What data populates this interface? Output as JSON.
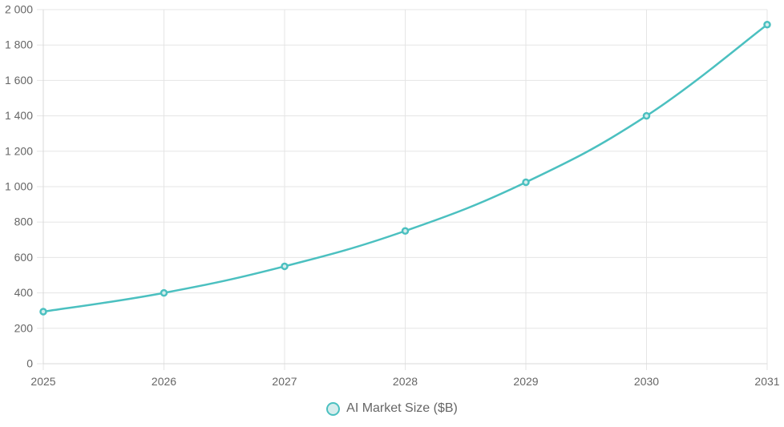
{
  "chart_data": {
    "type": "line",
    "x": [
      "2025",
      "2026",
      "2027",
      "2028",
      "2029",
      "2030",
      "2031"
    ],
    "series": [
      {
        "name": "AI Market Size ($B)",
        "values": [
          294,
          400,
          550,
          750,
          1025,
          1400,
          1915
        ],
        "color": "#4bc0c0"
      }
    ],
    "ylim": [
      0,
      2000
    ],
    "yticks": [
      0,
      200,
      400,
      600,
      800,
      1000,
      1200,
      1400,
      1600,
      1800,
      2000
    ],
    "ytick_labels": [
      "0",
      "200",
      "400",
      "600",
      "800",
      "1 000",
      "1 200",
      "1 400",
      "1 600",
      "1 800",
      "2 000"
    ],
    "grid": true,
    "legend_position": "bottom"
  },
  "style": {
    "grid_color": "#e5e5e5",
    "tick_color": "#666666",
    "point_fill": "#d6eded"
  }
}
